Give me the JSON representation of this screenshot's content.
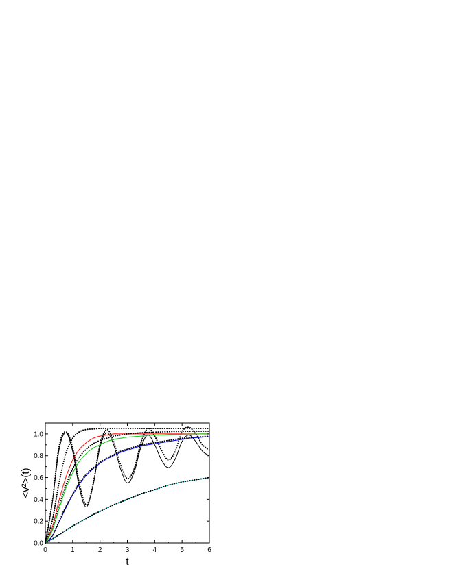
{
  "chart_data": {
    "type": "line",
    "title": "",
    "xlabel": "t",
    "ylabel": "<v²>(t)",
    "xlim": [
      0,
      6
    ],
    "ylim": [
      0,
      1.1
    ],
    "x_ticks": [
      "0",
      "1",
      "2",
      "3",
      "4",
      "5",
      "6"
    ],
    "y_ticks": [
      "0.0",
      "0.2",
      "0.4",
      "0.6",
      "0.8",
      "1.0"
    ],
    "grid": false,
    "legend": "none",
    "x": [
      0,
      0.25,
      0.5,
      0.75,
      1,
      1.25,
      1.5,
      1.75,
      2,
      2.25,
      2.5,
      2.75,
      3,
      3.25,
      3.5,
      3.75,
      4,
      4.25,
      4.5,
      4.75,
      5,
      5.25,
      5.5,
      5.75,
      6
    ],
    "series": [
      {
        "color": "#000000",
        "style": "solid",
        "values": [
          0,
          0.36,
          0.85,
          1.01,
          0.84,
          0.5,
          0.33,
          0.53,
          0.88,
          1.01,
          0.9,
          0.68,
          0.55,
          0.65,
          0.88,
          0.99,
          0.9,
          0.76,
          0.69,
          0.77,
          0.93,
          0.99,
          0.93,
          0.84,
          0.8
        ]
      },
      {
        "color": "#000000",
        "style": "dotted",
        "values": [
          0,
          0.37,
          0.88,
          1.02,
          0.87,
          0.54,
          0.35,
          0.55,
          0.9,
          1.04,
          0.93,
          0.72,
          0.59,
          0.68,
          0.92,
          1.05,
          0.98,
          0.85,
          0.76,
          0.84,
          1.02,
          1.06,
          1.0,
          0.9,
          0.85
        ]
      },
      {
        "color": "#000000",
        "style": "dotted",
        "values": [
          0,
          0.2,
          0.55,
          0.82,
          0.96,
          1.02,
          1.04,
          1.045,
          1.05,
          1.05,
          1.05,
          1.05,
          1.05,
          1.05,
          1.05,
          1.05,
          1.05,
          1.05,
          1.05,
          1.05,
          1.05,
          1.05,
          1.05,
          1.05,
          1.05
        ]
      },
      {
        "color": "#ff0000",
        "style": "solid",
        "values": [
          0,
          0.14,
          0.39,
          0.6,
          0.76,
          0.86,
          0.92,
          0.96,
          0.98,
          0.99,
          1.0,
          1.0,
          1.0,
          1.0,
          1.0,
          1.0,
          1.0,
          1.0,
          1.0,
          1.0,
          1.0,
          1.0,
          1.0,
          1.0,
          1.0
        ]
      },
      {
        "color": "#000000",
        "style": "dotted",
        "values": [
          0,
          0.12,
          0.34,
          0.53,
          0.68,
          0.79,
          0.86,
          0.91,
          0.94,
          0.96,
          0.98,
          0.99,
          1.0,
          1.005,
          1.01,
          1.013,
          1.016,
          1.018,
          1.02,
          1.022,
          1.023,
          1.024,
          1.025,
          1.025,
          1.025
        ]
      },
      {
        "color": "#00cc00",
        "style": "solid",
        "values": [
          0,
          0.11,
          0.31,
          0.5,
          0.64,
          0.75,
          0.82,
          0.87,
          0.9,
          0.93,
          0.95,
          0.96,
          0.97,
          0.975,
          0.98,
          0.985,
          0.99,
          0.99,
          0.993,
          0.995,
          0.997,
          0.998,
          0.999,
          1.0,
          1.0
        ]
      },
      {
        "color": "#0000ff",
        "style": "solid",
        "values": [
          0,
          0.06,
          0.19,
          0.32,
          0.44,
          0.54,
          0.62,
          0.68,
          0.73,
          0.77,
          0.8,
          0.83,
          0.85,
          0.87,
          0.89,
          0.9,
          0.91,
          0.92,
          0.93,
          0.94,
          0.95,
          0.96,
          0.965,
          0.97,
          0.975
        ]
      },
      {
        "color": "#000000",
        "style": "dotted",
        "values": [
          0,
          0.06,
          0.2,
          0.33,
          0.45,
          0.55,
          0.63,
          0.69,
          0.74,
          0.78,
          0.81,
          0.84,
          0.86,
          0.88,
          0.9,
          0.91,
          0.92,
          0.93,
          0.94,
          0.95,
          0.96,
          0.965,
          0.97,
          0.975,
          0.98
        ]
      },
      {
        "color": "#00cccc",
        "style": "solid",
        "values": [
          0,
          0.035,
          0.075,
          0.115,
          0.155,
          0.19,
          0.225,
          0.26,
          0.29,
          0.32,
          0.35,
          0.375,
          0.4,
          0.425,
          0.45,
          0.47,
          0.49,
          0.51,
          0.53,
          0.545,
          0.56,
          0.57,
          0.58,
          0.59,
          0.6
        ]
      },
      {
        "color": "#000000",
        "style": "dotted",
        "values": [
          0,
          0.035,
          0.075,
          0.115,
          0.155,
          0.19,
          0.225,
          0.26,
          0.29,
          0.32,
          0.35,
          0.375,
          0.4,
          0.425,
          0.45,
          0.47,
          0.49,
          0.51,
          0.53,
          0.545,
          0.56,
          0.57,
          0.58,
          0.59,
          0.6
        ]
      }
    ]
  }
}
